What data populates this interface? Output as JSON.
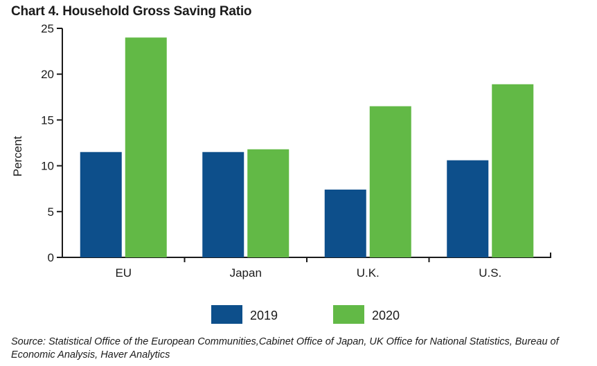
{
  "chart_data": {
    "type": "bar",
    "title": "Chart 4. Household Gross Saving Ratio",
    "xlabel": "",
    "ylabel": "Percent",
    "categories": [
      "EU",
      "Japan",
      "U.K.",
      "U.S."
    ],
    "series": [
      {
        "name": "2019",
        "color": "#0d4f8b",
        "values": [
          11.5,
          11.5,
          7.4,
          10.6
        ]
      },
      {
        "name": "2020",
        "color": "#62b946",
        "values": [
          24.0,
          11.8,
          16.5,
          18.9
        ]
      }
    ],
    "ylim": [
      0,
      25
    ],
    "yticks": [
      0,
      5,
      10,
      15,
      20,
      25
    ],
    "ytick_labels": [
      "0",
      "5",
      "10",
      "15",
      "20",
      "25"
    ],
    "grid": false,
    "legend_position": "bottom"
  },
  "source_text": "Source: Statistical Office of the European Communities,Cabinet Office of Japan, UK Office for National Statistics, Bureau of Economic Analysis, Haver Analytics"
}
